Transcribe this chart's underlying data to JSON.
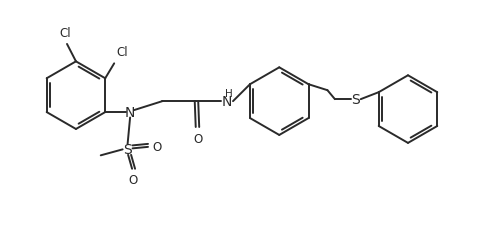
{
  "bg_color": "#ffffff",
  "line_color": "#2a2a2a",
  "line_width": 1.4,
  "font_size": 8.5,
  "figsize": [
    4.92,
    2.51
  ],
  "dpi": 100,
  "xlim": [
    0,
    9.84
  ],
  "ylim": [
    0,
    5.02
  ]
}
